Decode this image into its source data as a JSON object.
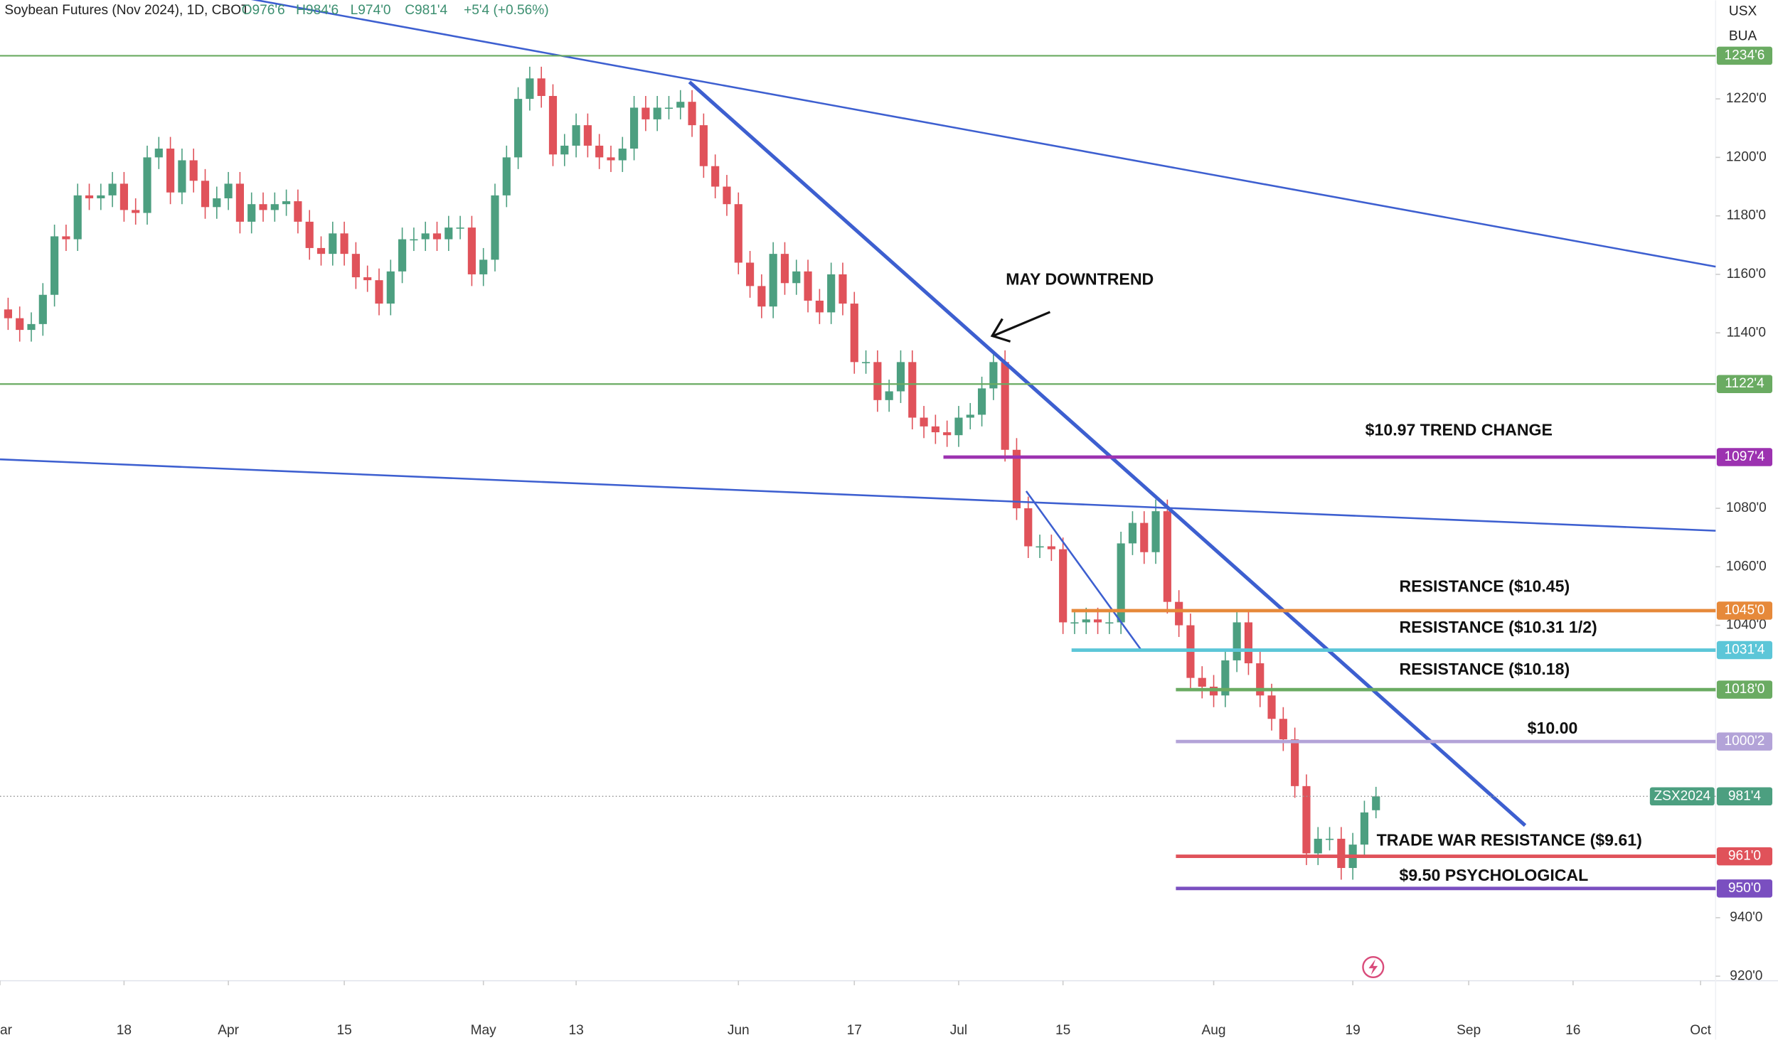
{
  "chart_data": {
    "type": "candlestick",
    "header": {
      "title": "Soybean Futures (Nov 2024), 1D, CBOT",
      "ohlc": [
        "O976'6",
        "H984'6",
        "L974'0",
        "C981'4"
      ],
      "change": "+5'4 (+0.56%)",
      "currency": "USX",
      "unit": "BUA"
    },
    "up_color": "#4c9f80",
    "down_color": "#e0525a",
    "open": [
      1148,
      1145,
      1141,
      1143,
      1153,
      1173,
      1172,
      1187,
      1186,
      1187,
      1191,
      1182,
      1181,
      1200,
      1203,
      1188,
      1199,
      1192,
      1183,
      1186,
      1191,
      1178,
      1184,
      1182,
      1184,
      1185,
      1178,
      1169,
      1167,
      1174,
      1167,
      1159,
      1158,
      1150,
      1161,
      1172,
      1172,
      1174,
      1172,
      1176,
      1176,
      1160,
      1165,
      1187,
      1200,
      1220,
      1227,
      1221,
      1201,
      1204,
      1211,
      1204,
      1200,
      1199,
      1203,
      1217,
      1213,
      1217,
      1217,
      1219,
      1211,
      1197,
      1190,
      1184,
      1164,
      1156,
      1149,
      1167,
      1157,
      1161,
      1151,
      1147,
      1160,
      1150,
      1130,
      1130,
      1117,
      1120,
      1130,
      1111,
      1108,
      1106,
      1105,
      1111,
      1112,
      1121,
      1130,
      1100,
      1080,
      1067,
      1067,
      1066,
      1041,
      1041,
      1042,
      1041,
      1041,
      1068,
      1075,
      1065,
      1079,
      1048,
      1040,
      1022,
      1019,
      1016,
      1028,
      1041,
      1027,
      1016,
      1008,
      1001,
      985,
      962,
      967,
      967,
      957,
      965,
      976.75
    ],
    "high": [
      1152,
      1149,
      1147,
      1157,
      1177,
      1177,
      1191,
      1191,
      1191,
      1195,
      1195,
      1186,
      1204,
      1207,
      1207,
      1203,
      1203,
      1196,
      1190,
      1195,
      1195,
      1188,
      1188,
      1188,
      1189,
      1189,
      1182,
      1173,
      1178,
      1178,
      1171,
      1163,
      1162,
      1165,
      1176,
      1176,
      1178,
      1178,
      1180,
      1180,
      1180,
      1169,
      1191,
      1204,
      1224,
      1231,
      1231,
      1225,
      1208,
      1215,
      1215,
      1208,
      1204,
      1207,
      1221,
      1221,
      1221,
      1221,
      1223,
      1223,
      1215,
      1201,
      1194,
      1188,
      1168,
      1160,
      1171,
      1171,
      1165,
      1165,
      1155,
      1164,
      1164,
      1154,
      1134,
      1134,
      1124,
      1134,
      1134,
      1115,
      1112,
      1110,
      1115,
      1116,
      1125,
      1134,
      1134,
      1104,
      1084,
      1071,
      1071,
      1070,
      1045,
      1046,
      1046,
      1045,
      1072,
      1079,
      1079,
      1083,
      1083,
      1052,
      1044,
      1026,
      1023,
      1032,
      1045,
      1045,
      1031,
      1020,
      1012,
      1005,
      989,
      971,
      971,
      971,
      969,
      980,
      984.75
    ],
    "low": [
      1141,
      1137,
      1137,
      1139,
      1149,
      1168,
      1168,
      1182,
      1182,
      1183,
      1178,
      1177,
      1177,
      1196,
      1184,
      1184,
      1188,
      1179,
      1179,
      1182,
      1174,
      1174,
      1178,
      1178,
      1180,
      1174,
      1165,
      1163,
      1163,
      1163,
      1155,
      1154,
      1146,
      1146,
      1157,
      1168,
      1168,
      1168,
      1168,
      1172,
      1156,
      1156,
      1161,
      1183,
      1196,
      1216,
      1217,
      1197,
      1197,
      1200,
      1200,
      1196,
      1195,
      1195,
      1199,
      1209,
      1209,
      1213,
      1213,
      1207,
      1193,
      1186,
      1180,
      1160,
      1152,
      1145,
      1145,
      1153,
      1153,
      1147,
      1143,
      1143,
      1146,
      1126,
      1126,
      1113,
      1113,
      1116,
      1107,
      1104,
      1102,
      1101,
      1101,
      1107,
      1108,
      1117,
      1096,
      1076,
      1063,
      1063,
      1062,
      1037,
      1037,
      1037,
      1037,
      1037,
      1037,
      1064,
      1061,
      1061,
      1044,
      1036,
      1018,
      1015,
      1012,
      1012,
      1024,
      1023,
      1012,
      1004,
      997,
      981,
      958,
      958,
      963,
      953,
      953,
      961,
      974
    ],
    "close": [
      1145,
      1141,
      1143,
      1153,
      1173,
      1172,
      1187,
      1186,
      1187,
      1191,
      1182,
      1181,
      1200,
      1203,
      1188,
      1199,
      1192,
      1183,
      1186,
      1191,
      1178,
      1184,
      1182,
      1184,
      1185,
      1178,
      1169,
      1167,
      1174,
      1167,
      1159,
      1158,
      1150,
      1161,
      1172,
      1172,
      1174,
      1172,
      1176,
      1176,
      1160,
      1165,
      1187,
      1200,
      1220,
      1227,
      1221,
      1201,
      1204,
      1211,
      1204,
      1200,
      1199,
      1203,
      1217,
      1213,
      1217,
      1217,
      1219,
      1211,
      1197,
      1190,
      1184,
      1164,
      1156,
      1149,
      1167,
      1157,
      1161,
      1151,
      1147,
      1160,
      1150,
      1130,
      1130,
      1117,
      1120,
      1130,
      1111,
      1108,
      1106,
      1105,
      1111,
      1112,
      1121,
      1130,
      1100,
      1080,
      1067,
      1067,
      1066,
      1041,
      1041,
      1042,
      1041,
      1041,
      1068,
      1075,
      1065,
      1079,
      1048,
      1040,
      1022,
      1019,
      1016,
      1028,
      1041,
      1027,
      1016,
      1008,
      1001,
      985,
      962,
      967,
      967,
      957,
      965,
      976,
      981.5
    ],
    "xlim": [
      -0.7,
      147.3
    ],
    "xticks": [
      {
        "value": -0.7,
        "label": "ar"
      },
      {
        "value": 10,
        "label": "18"
      },
      {
        "value": 19,
        "label": "Apr"
      },
      {
        "value": 29,
        "label": "15"
      },
      {
        "value": 41,
        "label": "May"
      },
      {
        "value": 49,
        "label": "13"
      },
      {
        "value": 63,
        "label": "Jun"
      },
      {
        "value": 73,
        "label": "17"
      },
      {
        "value": 82,
        "label": "Jul"
      },
      {
        "value": 91,
        "label": "15"
      },
      {
        "value": 104,
        "label": "Aug"
      },
      {
        "value": 116,
        "label": "19"
      },
      {
        "value": 126,
        "label": "Sep"
      },
      {
        "value": 135,
        "label": "16"
      },
      {
        "value": 146,
        "label": "Oct"
      }
    ],
    "ylim": [
      920,
      1253.7
    ],
    "yticks": [
      {
        "value": 1220,
        "label": "1220'0"
      },
      {
        "value": 1200,
        "label": "1200'0"
      },
      {
        "value": 1180,
        "label": "1180'0"
      },
      {
        "value": 1160,
        "label": "1160'0"
      },
      {
        "value": 1140,
        "label": "1140'0"
      },
      {
        "value": 1080,
        "label": "1080'0"
      },
      {
        "value": 1060,
        "label": "1060'0"
      },
      {
        "value": 1040,
        "label": "1040'0"
      },
      {
        "value": 940,
        "label": "940'0"
      },
      {
        "value": 920,
        "label": "920'0"
      }
    ],
    "levels": [
      {
        "value": 1234.75,
        "label": "1234'6",
        "color": "#6aab62"
      },
      {
        "value": 1122.5,
        "label": "1122'4",
        "color": "#6aab62"
      },
      {
        "value": 1097.5,
        "label": "1097'4",
        "color": "#9c32b0"
      },
      {
        "value": 1045,
        "label": "1045'0",
        "color": "#e6893a"
      },
      {
        "value": 1031.5,
        "label": "1031'4",
        "color": "#5cc6d8"
      },
      {
        "value": 1018,
        "label": "1018'0",
        "color": "#6aab62"
      },
      {
        "value": 1000.25,
        "label": "1000'2",
        "color": "#b3a3d8"
      },
      {
        "value": 961,
        "label": "961'0",
        "color": "#e0525a"
      },
      {
        "value": 950,
        "label": "950'0",
        "color": "#7a4fc0"
      }
    ],
    "last_price": {
      "value": 981.5,
      "label": "981'4",
      "symbol": "ZSX2024",
      "color": "#4c9f80"
    },
    "annotations": [
      "MAY DOWNTREND",
      "$10.97 TREND CHANGE",
      "RESISTANCE ($10.45)",
      "RESISTANCE ($10.31 1/2)",
      "RESISTANCE ($10.18)",
      "$10.00",
      "TRADE WAR RESISTANCE ($9.61)",
      "$9.50 PSYCHOLOGICAL"
    ]
  }
}
